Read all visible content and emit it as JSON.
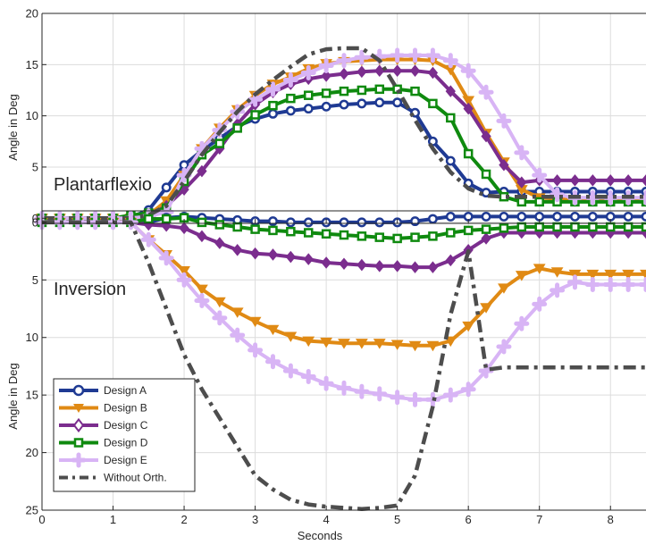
{
  "colors": {
    "design_a": "#1f3a93",
    "design_b": "#e08a14",
    "design_c": "#7b2d8e",
    "design_d": "#0f8a0f",
    "design_e": "#d8b4f5",
    "without_orth": "#4d4d4d",
    "grid": "#dcdcdc",
    "axis": "#262626"
  },
  "chart_data": [
    {
      "type": "line",
      "annotation": "Plantarflexio",
      "ylabel": "Angle in Deg",
      "xlabel": "",
      "xlim": [
        0,
        8.5
      ],
      "ylim": [
        -0.5,
        20
      ],
      "xticks": [
        0,
        1,
        2,
        3,
        4,
        5,
        6,
        7,
        8
      ],
      "yticks": [
        0,
        5,
        10,
        15,
        20
      ],
      "grid": true,
      "x": [
        0,
        0.25,
        0.5,
        0.75,
        1,
        1.25,
        1.5,
        1.75,
        2,
        2.25,
        2.5,
        2.75,
        3,
        3.25,
        3.5,
        3.75,
        4,
        4.25,
        4.5,
        4.75,
        5,
        5.25,
        5.5,
        5.75,
        6,
        6.25,
        6.5,
        6.75,
        7,
        7.25,
        7.5,
        7.75,
        8,
        8.25,
        8.5
      ],
      "series": [
        {
          "name": "Design A",
          "key": "design_a",
          "marker": "circle",
          "values": [
            0,
            0,
            0,
            0,
            0,
            0.1,
            0.8,
            3,
            5.2,
            6.6,
            7.8,
            9,
            9.7,
            10.2,
            10.5,
            10.7,
            10.9,
            11.1,
            11.2,
            11.3,
            11.3,
            10.3,
            7.5,
            5.6,
            3.4,
            2.5,
            2.6,
            2.6,
            2.6,
            2.6,
            2.6,
            2.6,
            2.6,
            2.6,
            2.6
          ]
        },
        {
          "name": "Design B",
          "key": "design_b",
          "marker": "triangle-down",
          "values": [
            0,
            0,
            0,
            0,
            0,
            0,
            0.3,
            1.7,
            4.2,
            6.8,
            8.8,
            10.6,
            12,
            13.1,
            13.8,
            14.6,
            15.1,
            15.3,
            15.4,
            15.5,
            15.5,
            15.5,
            15.4,
            14.5,
            11.5,
            8.3,
            5.5,
            2.8,
            2,
            1.9,
            1.8,
            1.8,
            1.8,
            1.8,
            1.8
          ]
        },
        {
          "name": "Design C",
          "key": "design_c",
          "marker": "diamond",
          "values": [
            0,
            0,
            0,
            0,
            0,
            0,
            0.2,
            1.2,
            2.8,
            4.6,
            6.8,
            9.2,
            11.1,
            12.3,
            13.1,
            13.6,
            13.9,
            14.1,
            14.3,
            14.4,
            14.4,
            14.4,
            14.2,
            12.4,
            10.7,
            8,
            5.2,
            3.5,
            3.7,
            3.7,
            3.7,
            3.7,
            3.7,
            3.7,
            3.7
          ]
        },
        {
          "name": "Design D",
          "key": "design_d",
          "marker": "square",
          "values": [
            0,
            0,
            0,
            0,
            0,
            0.3,
            0.5,
            1,
            3.6,
            6.2,
            7.3,
            8.8,
            10.1,
            11,
            11.7,
            12,
            12.2,
            12.4,
            12.5,
            12.6,
            12.6,
            12.4,
            11.2,
            9.8,
            6.3,
            4.3,
            2.1,
            1.6,
            1.6,
            1.6,
            1.6,
            1.6,
            1.6,
            1.6,
            1.6
          ]
        },
        {
          "name": "Design E",
          "key": "design_e",
          "marker": "plus",
          "values": [
            0,
            0,
            0,
            0,
            0,
            0,
            0.2,
            0.6,
            4.2,
            6.8,
            8.6,
            10.4,
            11.6,
            12.6,
            13.5,
            14.2,
            14.9,
            15.4,
            15.7,
            15.8,
            15.9,
            15.9,
            15.9,
            15.4,
            14.4,
            12.3,
            9.5,
            6.4,
            4.2,
            2.3,
            2,
            2,
            2,
            2,
            2
          ]
        },
        {
          "name": "Without Orth.",
          "key": "without_orth",
          "marker": "none",
          "dash": true,
          "values": [
            0,
            0,
            0,
            0,
            0,
            0,
            0.3,
            1.2,
            3.6,
            6.2,
            8.4,
            10.4,
            12.1,
            13.5,
            14.8,
            16,
            16.5,
            16.6,
            16.6,
            15.4,
            12.6,
            9.6,
            6.8,
            4.5,
            2.9,
            2.2,
            2.1,
            2.1,
            2.1,
            2.1,
            2.1,
            2.1,
            2.1,
            2.1,
            2.1
          ]
        }
      ]
    },
    {
      "type": "line",
      "annotation": "Inversion",
      "ylabel": "Angle in Deg",
      "xlabel": "Seconds",
      "xlim": [
        0,
        8.5
      ],
      "ylim": [
        -1,
        25
      ],
      "y_inverted": true,
      "xticks": [
        0,
        1,
        2,
        3,
        4,
        5,
        6,
        7,
        8
      ],
      "yticks": [
        0,
        5,
        10,
        15,
        20,
        25
      ],
      "grid": true,
      "legend_placement": "bottom-left",
      "x": [
        0,
        0.25,
        0.5,
        0.75,
        1,
        1.25,
        1.5,
        1.75,
        2,
        2.25,
        2.5,
        2.75,
        3,
        3.25,
        3.5,
        3.75,
        4,
        4.25,
        4.5,
        4.75,
        5,
        5.25,
        5.5,
        5.75,
        6,
        6.25,
        6.5,
        6.75,
        7,
        7.25,
        7.5,
        7.75,
        8,
        8.25,
        8.5
      ],
      "series": [
        {
          "name": "Design A",
          "key": "design_a",
          "marker": "circle",
          "values": [
            0,
            0,
            0,
            0,
            0,
            0,
            0,
            -0.4,
            -0.5,
            -0.4,
            -0.3,
            -0.2,
            -0.1,
            -0.1,
            0,
            0,
            0,
            0,
            0,
            0,
            0,
            -0.1,
            -0.3,
            -0.5,
            -0.5,
            -0.5,
            -0.5,
            -0.5,
            -0.5,
            -0.5,
            -0.5,
            -0.5,
            -0.5,
            -0.5,
            -0.5
          ]
        },
        {
          "name": "Design B",
          "key": "design_b",
          "marker": "triangle-down",
          "values": [
            0,
            0,
            0,
            0,
            0,
            0,
            1.5,
            2.8,
            4.2,
            5.8,
            6.9,
            7.8,
            8.6,
            9.3,
            9.9,
            10.3,
            10.4,
            10.5,
            10.5,
            10.5,
            10.6,
            10.7,
            10.7,
            10.3,
            9,
            7.4,
            5.7,
            4.6,
            4,
            4.3,
            4.5,
            4.5,
            4.5,
            4.5,
            4.5
          ]
        },
        {
          "name": "Design C",
          "key": "design_c",
          "marker": "diamond",
          "values": [
            0,
            0,
            0,
            0,
            0,
            0,
            0.2,
            0.3,
            0.5,
            1.2,
            1.8,
            2.4,
            2.7,
            2.8,
            3,
            3.2,
            3.5,
            3.6,
            3.7,
            3.8,
            3.8,
            3.9,
            3.9,
            3.3,
            2.4,
            1.4,
            0.9,
            0.9,
            0.9,
            0.9,
            0.9,
            0.9,
            0.9,
            0.9,
            0.9
          ]
        },
        {
          "name": "Design D",
          "key": "design_d",
          "marker": "square",
          "values": [
            0,
            0,
            0,
            0,
            0,
            0,
            -0.3,
            -0.3,
            -0.4,
            0,
            0.2,
            0.4,
            0.6,
            0.7,
            0.8,
            0.9,
            1,
            1.1,
            1.2,
            1.3,
            1.4,
            1.3,
            1.2,
            0.9,
            0.7,
            0.6,
            0.5,
            0.4,
            0.4,
            0.4,
            0.4,
            0.4,
            0.4,
            0.4,
            0.4
          ]
        },
        {
          "name": "Design E",
          "key": "design_e",
          "marker": "plus",
          "values": [
            0,
            0,
            0,
            0,
            0,
            0,
            1.5,
            3.1,
            5,
            6.8,
            8.3,
            9.8,
            11.1,
            12.1,
            12.9,
            13.4,
            14,
            14.4,
            14.7,
            14.9,
            15.2,
            15.4,
            15.4,
            15,
            14.5,
            12.9,
            10.8,
            8.8,
            7.1,
            5.9,
            5.2,
            5.4,
            5.4,
            5.4,
            5.4
          ]
        },
        {
          "name": "Without Orth.",
          "key": "without_orth",
          "marker": "none",
          "dash": true,
          "values": [
            0,
            0,
            0,
            0,
            0,
            0,
            3.5,
            7.5,
            11.5,
            14.5,
            17,
            19.5,
            22,
            23.2,
            24.1,
            24.5,
            24.7,
            24.8,
            24.9,
            24.8,
            24.6,
            22,
            16,
            8,
            2.5,
            12.8,
            12.6,
            12.6,
            12.6,
            12.6,
            12.6,
            12.6,
            12.6,
            12.6,
            12.6
          ]
        }
      ]
    }
  ]
}
